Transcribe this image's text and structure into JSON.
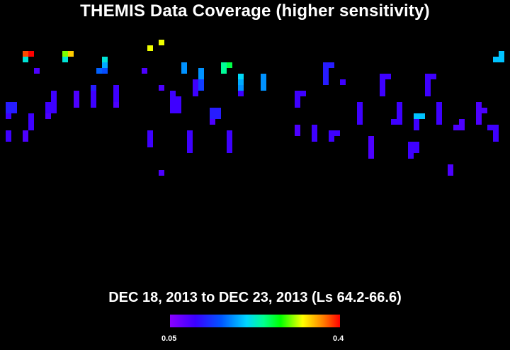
{
  "chart_data": {
    "type": "heatmap",
    "title": "THEMIS Data Coverage (higher sensitivity)",
    "subtitle": "DEC 18, 2013 to DEC 23, 2013 (Ls 64.2-66.6)",
    "colorbar": {
      "min_label": "0.05",
      "max_label": "0.4",
      "min": 0.05,
      "max": 0.4
    },
    "grid": false,
    "x_range": [
      0,
      90
    ],
    "y_range": [
      0,
      50
    ],
    "strips": [
      {
        "x": 1,
        "y0": 18,
        "y1": 20,
        "values": [
          0.12,
          0.12,
          0.1
        ]
      },
      {
        "x": 2,
        "y0": 18,
        "y1": 19,
        "values": [
          0.12,
          0.12
        ]
      },
      {
        "x": 1,
        "y0": 23,
        "y1": 24,
        "values": [
          0.1,
          0.1
        ]
      },
      {
        "x": 4,
        "y0": 9,
        "y1": 10,
        "values": [
          0.38,
          0.22
        ]
      },
      {
        "x": 5,
        "y0": 9,
        "y1": 9,
        "values": [
          0.4
        ]
      },
      {
        "x": 6,
        "y0": 12,
        "y1": 12,
        "values": [
          0.09
        ]
      },
      {
        "x": 5,
        "y0": 20,
        "y1": 22,
        "values": [
          0.1,
          0.1,
          0.1
        ]
      },
      {
        "x": 4,
        "y0": 23,
        "y1": 24,
        "values": [
          0.09,
          0.09
        ]
      },
      {
        "x": 8,
        "y0": 18,
        "y1": 20,
        "values": [
          0.1,
          0.1,
          0.09
        ]
      },
      {
        "x": 9,
        "y0": 16,
        "y1": 19,
        "values": [
          0.1,
          0.1,
          0.1,
          0.1
        ]
      },
      {
        "x": 11,
        "y0": 9,
        "y1": 10,
        "values": [
          0.3,
          0.22
        ]
      },
      {
        "x": 12,
        "y0": 9,
        "y1": 9,
        "values": [
          0.34
        ]
      },
      {
        "x": 13,
        "y0": 16,
        "y1": 18,
        "values": [
          0.09,
          0.09,
          0.09
        ]
      },
      {
        "x": 16,
        "y0": 15,
        "y1": 18,
        "values": [
          0.12,
          0.1,
          0.1,
          0.1
        ]
      },
      {
        "x": 17,
        "y0": 12,
        "y1": 12,
        "values": [
          0.16
        ]
      },
      {
        "x": 18,
        "y0": 10,
        "y1": 12,
        "values": [
          0.22,
          0.19,
          0.15
        ]
      },
      {
        "x": 20,
        "y0": 15,
        "y1": 18,
        "values": [
          0.1,
          0.1,
          0.1,
          0.09
        ]
      },
      {
        "x": 25,
        "y0": 12,
        "y1": 12,
        "values": [
          0.09
        ]
      },
      {
        "x": 26,
        "y0": 8,
        "y1": 8,
        "values": [
          0.32
        ]
      },
      {
        "x": 28,
        "y0": 7,
        "y1": 7,
        "values": [
          0.32
        ]
      },
      {
        "x": 28,
        "y0": 15,
        "y1": 15,
        "values": [
          0.09
        ]
      },
      {
        "x": 26,
        "y0": 23,
        "y1": 25,
        "values": [
          0.1,
          0.1,
          0.1
        ]
      },
      {
        "x": 30,
        "y0": 16,
        "y1": 19,
        "values": [
          0.1,
          0.1,
          0.1,
          0.1
        ]
      },
      {
        "x": 31,
        "y0": 17,
        "y1": 19,
        "values": [
          0.1,
          0.1,
          0.1
        ]
      },
      {
        "x": 28,
        "y0": 30,
        "y1": 30,
        "values": [
          0.09
        ]
      },
      {
        "x": 32,
        "y0": 11,
        "y1": 12,
        "values": [
          0.18,
          0.18
        ]
      },
      {
        "x": 34,
        "y0": 14,
        "y1": 16,
        "values": [
          0.1,
          0.1,
          0.1
        ]
      },
      {
        "x": 35,
        "y0": 12,
        "y1": 15,
        "values": [
          0.18,
          0.18,
          0.14,
          0.14
        ]
      },
      {
        "x": 33,
        "y0": 23,
        "y1": 26,
        "values": [
          0.1,
          0.1,
          0.1,
          0.1
        ]
      },
      {
        "x": 37,
        "y0": 19,
        "y1": 21,
        "values": [
          0.12,
          0.12,
          0.09
        ]
      },
      {
        "x": 38,
        "y0": 19,
        "y1": 20,
        "values": [
          0.12,
          0.12
        ]
      },
      {
        "x": 39,
        "y0": 11,
        "y1": 12,
        "values": [
          0.24,
          0.24
        ]
      },
      {
        "x": 40,
        "y0": 11,
        "y1": 11,
        "values": [
          0.26
        ]
      },
      {
        "x": 42,
        "y0": 13,
        "y1": 16,
        "values": [
          0.21,
          0.19,
          0.18,
          0.1
        ]
      },
      {
        "x": 40,
        "y0": 23,
        "y1": 26,
        "values": [
          0.1,
          0.1,
          0.1,
          0.1
        ]
      },
      {
        "x": 46,
        "y0": 13,
        "y1": 15,
        "values": [
          0.18,
          0.18,
          0.18
        ]
      },
      {
        "x": 52,
        "y0": 16,
        "y1": 18,
        "values": [
          0.1,
          0.1,
          0.1
        ]
      },
      {
        "x": 53,
        "y0": 16,
        "y1": 16,
        "values": [
          0.1
        ]
      },
      {
        "x": 52,
        "y0": 22,
        "y1": 23,
        "values": [
          0.09,
          0.09
        ]
      },
      {
        "x": 55,
        "y0": 22,
        "y1": 24,
        "values": [
          0.1,
          0.1,
          0.1
        ]
      },
      {
        "x": 57,
        "y0": 11,
        "y1": 14,
        "values": [
          0.12,
          0.12,
          0.12,
          0.12
        ]
      },
      {
        "x": 58,
        "y0": 11,
        "y1": 11,
        "values": [
          0.12
        ]
      },
      {
        "x": 58,
        "y0": 23,
        "y1": 24,
        "values": [
          0.1,
          0.1
        ]
      },
      {
        "x": 59,
        "y0": 23,
        "y1": 23,
        "values": [
          0.1
        ]
      },
      {
        "x": 60,
        "y0": 14,
        "y1": 14,
        "values": [
          0.1
        ]
      },
      {
        "x": 63,
        "y0": 18,
        "y1": 21,
        "values": [
          0.1,
          0.1,
          0.1,
          0.1
        ]
      },
      {
        "x": 65,
        "y0": 24,
        "y1": 27,
        "values": [
          0.09,
          0.09,
          0.09,
          0.09
        ]
      },
      {
        "x": 67,
        "y0": 13,
        "y1": 16,
        "values": [
          0.1,
          0.1,
          0.1,
          0.1
        ]
      },
      {
        "x": 68,
        "y0": 13,
        "y1": 13,
        "values": [
          0.1
        ]
      },
      {
        "x": 69,
        "y0": 21,
        "y1": 21,
        "values": [
          0.1
        ]
      },
      {
        "x": 70,
        "y0": 18,
        "y1": 21,
        "values": [
          0.1,
          0.1,
          0.1,
          0.1
        ]
      },
      {
        "x": 72,
        "y0": 25,
        "y1": 27,
        "values": [
          0.1,
          0.1,
          0.1
        ]
      },
      {
        "x": 73,
        "y0": 25,
        "y1": 26,
        "values": [
          0.1,
          0.1
        ]
      },
      {
        "x": 73,
        "y0": 20,
        "y1": 22,
        "values": [
          0.2,
          0.1,
          0.1
        ]
      },
      {
        "x": 74,
        "y0": 20,
        "y1": 20,
        "values": [
          0.2
        ]
      },
      {
        "x": 75,
        "y0": 13,
        "y1": 16,
        "values": [
          0.1,
          0.1,
          0.1,
          0.1
        ]
      },
      {
        "x": 76,
        "y0": 13,
        "y1": 13,
        "values": [
          0.1
        ]
      },
      {
        "x": 77,
        "y0": 18,
        "y1": 21,
        "values": [
          0.1,
          0.1,
          0.1,
          0.1
        ]
      },
      {
        "x": 79,
        "y0": 29,
        "y1": 30,
        "values": [
          0.09,
          0.09
        ]
      },
      {
        "x": 80,
        "y0": 22,
        "y1": 22,
        "values": [
          0.09
        ]
      },
      {
        "x": 81,
        "y0": 21,
        "y1": 22,
        "values": [
          0.09,
          0.09
        ]
      },
      {
        "x": 84,
        "y0": 18,
        "y1": 21,
        "values": [
          0.09,
          0.09,
          0.09,
          0.09
        ]
      },
      {
        "x": 85,
        "y0": 19,
        "y1": 19,
        "values": [
          0.09
        ]
      },
      {
        "x": 87,
        "y0": 10,
        "y1": 10,
        "values": [
          0.2
        ]
      },
      {
        "x": 88,
        "y0": 9,
        "y1": 10,
        "values": [
          0.2,
          0.2
        ]
      },
      {
        "x": 87,
        "y0": 22,
        "y1": 24,
        "values": [
          0.1,
          0.1,
          0.1
        ]
      },
      {
        "x": 86,
        "y0": 22,
        "y1": 22,
        "values": [
          0.1
        ]
      }
    ]
  }
}
